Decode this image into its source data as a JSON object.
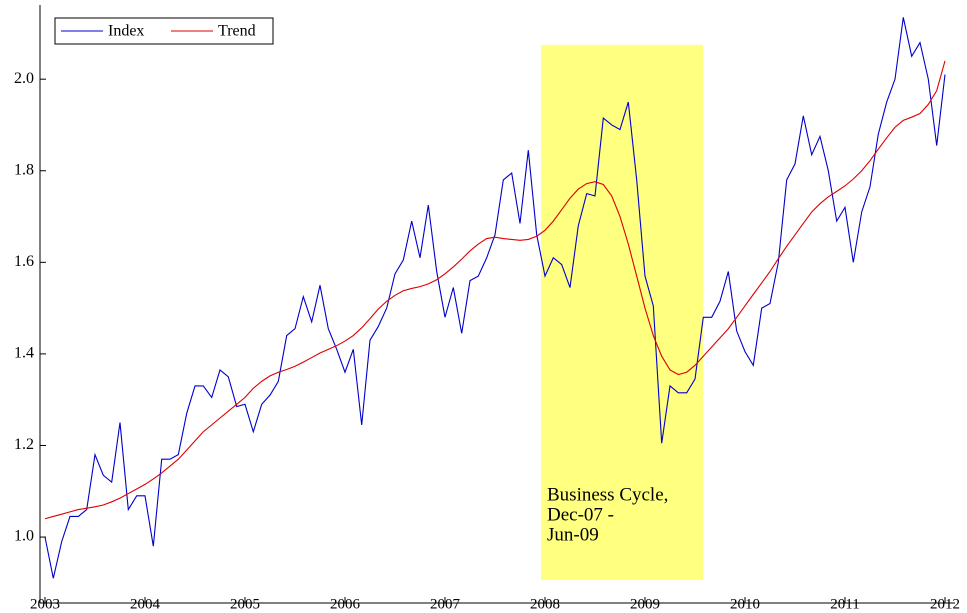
{
  "chart_data": {
    "type": "line",
    "x": [
      2003,
      2003.083,
      2003.167,
      2003.25,
      2003.333,
      2003.417,
      2003.5,
      2003.583,
      2003.667,
      2003.75,
      2003.833,
      2003.917,
      2004,
      2004.083,
      2004.167,
      2004.25,
      2004.333,
      2004.417,
      2004.5,
      2004.583,
      2004.667,
      2004.75,
      2004.833,
      2004.917,
      2005,
      2005.083,
      2005.167,
      2005.25,
      2005.333,
      2005.417,
      2005.5,
      2005.583,
      2005.667,
      2005.75,
      2005.833,
      2005.917,
      2006,
      2006.083,
      2006.167,
      2006.25,
      2006.333,
      2006.417,
      2006.5,
      2006.583,
      2006.667,
      2006.75,
      2006.833,
      2006.917,
      2007,
      2007.083,
      2007.167,
      2007.25,
      2007.333,
      2007.417,
      2007.5,
      2007.583,
      2007.667,
      2007.75,
      2007.833,
      2007.917,
      2008,
      2008.083,
      2008.167,
      2008.25,
      2008.333,
      2008.417,
      2008.5,
      2008.583,
      2008.667,
      2008.75,
      2008.833,
      2008.917,
      2009,
      2009.083,
      2009.167,
      2009.25,
      2009.333,
      2009.417,
      2009.5,
      2009.583,
      2009.667,
      2009.75,
      2009.833,
      2009.917,
      2010,
      2010.083,
      2010.167,
      2010.25,
      2010.333,
      2010.417,
      2010.5,
      2010.583,
      2010.667,
      2010.75,
      2010.833,
      2010.917,
      2011,
      2011.083,
      2011.167,
      2011.25,
      2011.333,
      2011.417,
      2011.5,
      2011.583,
      2011.667,
      2011.75,
      2011.833,
      2011.917,
      2012
    ],
    "series": [
      {
        "name": "Index",
        "color": "#0000cc",
        "values": [
          1.0,
          0.91,
          0.99,
          1.045,
          1.045,
          1.06,
          1.18,
          1.135,
          1.12,
          1.25,
          1.06,
          1.09,
          1.09,
          0.98,
          1.17,
          1.17,
          1.18,
          1.27,
          1.33,
          1.33,
          1.305,
          1.365,
          1.35,
          1.285,
          1.29,
          1.23,
          1.29,
          1.31,
          1.34,
          1.44,
          1.455,
          1.525,
          1.47,
          1.55,
          1.455,
          1.41,
          1.36,
          1.41,
          1.245,
          1.43,
          1.46,
          1.5,
          1.575,
          1.605,
          1.69,
          1.61,
          1.725,
          1.58,
          1.48,
          1.545,
          1.445,
          1.56,
          1.57,
          1.61,
          1.66,
          1.78,
          1.795,
          1.685,
          1.845,
          1.66,
          1.57,
          1.61,
          1.595,
          1.545,
          1.68,
          1.75,
          1.745,
          1.915,
          1.9,
          1.89,
          1.95,
          1.78,
          1.57,
          1.505,
          1.205,
          1.33,
          1.315,
          1.315,
          1.345,
          1.48,
          1.48,
          1.515,
          1.58,
          1.45,
          1.405,
          1.375,
          1.5,
          1.51,
          1.6,
          1.78,
          1.815,
          1.92,
          1.835,
          1.875,
          1.8,
          1.69,
          1.72,
          1.6,
          1.71,
          1.765,
          1.88,
          1.95,
          2.0,
          2.135,
          2.05,
          2.08,
          2.0,
          1.855,
          2.01
        ]
      },
      {
        "name": "Trend",
        "color": "#dd0000",
        "values": [
          1.04,
          1.045,
          1.05,
          1.055,
          1.06,
          1.063,
          1.066,
          1.07,
          1.077,
          1.085,
          1.095,
          1.105,
          1.115,
          1.127,
          1.14,
          1.155,
          1.17,
          1.19,
          1.21,
          1.23,
          1.245,
          1.26,
          1.275,
          1.29,
          1.305,
          1.325,
          1.34,
          1.352,
          1.36,
          1.366,
          1.373,
          1.382,
          1.392,
          1.402,
          1.41,
          1.418,
          1.428,
          1.44,
          1.457,
          1.477,
          1.498,
          1.515,
          1.528,
          1.538,
          1.543,
          1.547,
          1.553,
          1.562,
          1.575,
          1.59,
          1.607,
          1.625,
          1.64,
          1.652,
          1.655,
          1.652,
          1.65,
          1.648,
          1.65,
          1.657,
          1.67,
          1.69,
          1.715,
          1.74,
          1.76,
          1.772,
          1.776,
          1.77,
          1.745,
          1.7,
          1.64,
          1.57,
          1.5,
          1.44,
          1.395,
          1.365,
          1.355,
          1.36,
          1.375,
          1.395,
          1.415,
          1.435,
          1.455,
          1.48,
          1.505,
          1.53,
          1.555,
          1.58,
          1.608,
          1.635,
          1.66,
          1.685,
          1.71,
          1.728,
          1.743,
          1.755,
          1.767,
          1.782,
          1.8,
          1.822,
          1.847,
          1.872,
          1.895,
          1.91,
          1.917,
          1.925,
          1.945,
          1.975,
          2.04
        ]
      }
    ],
    "xlim": [
      2002.95,
      2012.1
    ],
    "xticks": [
      2003,
      2004,
      2005,
      2006,
      2007,
      2008,
      2009,
      2010,
      2011,
      2012
    ],
    "ylim": [
      0.856,
      2.162
    ],
    "yticks": [
      {
        "value": 1,
        "label": "1.0"
      },
      1.2,
      1.4,
      1.6,
      1.8,
      {
        "value": 2,
        "label": "2.0"
      }
    ],
    "legend": "upper left",
    "shaded_region": {
      "x": [
        2007.96,
        2009.58
      ],
      "y": [
        0.906,
        2.075
      ],
      "color": "#ffff80",
      "label": [
        "Business Cycle,",
        "Dec-07 -",
        "Jun-09"
      ]
    }
  }
}
